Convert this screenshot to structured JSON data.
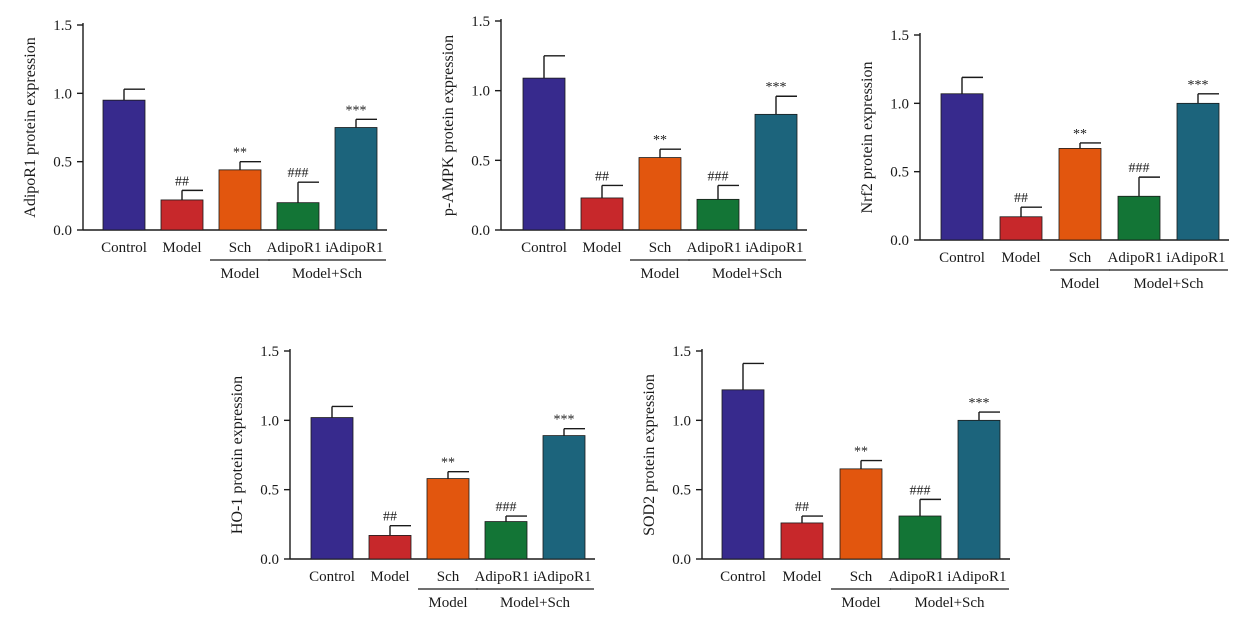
{
  "chart_data": [
    {
      "type": "bar",
      "ylabel": "AdipoR1 protein expression",
      "ylim": [
        0,
        1.5
      ],
      "yticks": [
        "0.0",
        "0.5",
        "1.0",
        "1.5"
      ],
      "categories": [
        "Control",
        "Model",
        "Sch",
        "AdipoR1 i",
        "AdipoR1"
      ],
      "values": [
        0.95,
        0.22,
        0.44,
        0.2,
        0.75
      ],
      "errors": [
        0.08,
        0.07,
        0.06,
        0.15,
        0.06
      ],
      "significance": [
        "",
        "##",
        "**",
        "###",
        "***"
      ],
      "group_labels": [
        {
          "text": "Model",
          "from": 2,
          "to": 2
        },
        {
          "text": "Model+Sch",
          "from": 3,
          "to": 4
        }
      ]
    },
    {
      "type": "bar",
      "ylabel": "p-AMPK protein expression",
      "ylim": [
        0,
        1.5
      ],
      "yticks": [
        "0.0",
        "0.5",
        "1.0",
        "1.5"
      ],
      "categories": [
        "Control",
        "Model",
        "Sch",
        "AdipoR1 i",
        "AdipoR1"
      ],
      "values": [
        1.09,
        0.23,
        0.52,
        0.22,
        0.83
      ],
      "errors": [
        0.16,
        0.09,
        0.06,
        0.1,
        0.13
      ],
      "significance": [
        "",
        "##",
        "**",
        "###",
        "***"
      ],
      "group_labels": [
        {
          "text": "Model",
          "from": 2,
          "to": 2
        },
        {
          "text": "Model+Sch",
          "from": 3,
          "to": 4
        }
      ]
    },
    {
      "type": "bar",
      "ylabel": "Nrf2 protein expression",
      "ylim": [
        0,
        1.5
      ],
      "yticks": [
        "0.0",
        "0.5",
        "1.0",
        "1.5"
      ],
      "categories": [
        "Control",
        "Model",
        "Sch",
        "AdipoR1 i",
        "AdipoR1"
      ],
      "values": [
        1.07,
        0.17,
        0.67,
        0.32,
        1.0
      ],
      "errors": [
        0.12,
        0.07,
        0.04,
        0.14,
        0.07
      ],
      "significance": [
        "",
        "##",
        "**",
        "###",
        "***"
      ],
      "group_labels": [
        {
          "text": "Model",
          "from": 2,
          "to": 2
        },
        {
          "text": "Model+Sch",
          "from": 3,
          "to": 4
        }
      ]
    },
    {
      "type": "bar",
      "ylabel": "HO-1 protein expression",
      "ylim": [
        0,
        1.5
      ],
      "yticks": [
        "0.0",
        "0.5",
        "1.0",
        "1.5"
      ],
      "categories": [
        "Control",
        "Model",
        "Sch",
        "AdipoR1 i",
        "AdipoR1"
      ],
      "values": [
        1.02,
        0.17,
        0.58,
        0.27,
        0.89
      ],
      "errors": [
        0.08,
        0.07,
        0.05,
        0.04,
        0.05
      ],
      "significance": [
        "",
        "##",
        "**",
        "###",
        "***"
      ],
      "group_labels": [
        {
          "text": "Model",
          "from": 2,
          "to": 2
        },
        {
          "text": "Model+Sch",
          "from": 3,
          "to": 4
        }
      ]
    },
    {
      "type": "bar",
      "ylabel": "SOD2 protein expression",
      "ylim": [
        0,
        1.5
      ],
      "yticks": [
        "0.0",
        "0.5",
        "1.0",
        "1.5"
      ],
      "categories": [
        "Control",
        "Model",
        "Sch",
        "AdipoR1 i",
        "AdipoR1"
      ],
      "values": [
        1.22,
        0.26,
        0.65,
        0.31,
        1.0
      ],
      "errors": [
        0.19,
        0.05,
        0.06,
        0.12,
        0.06
      ],
      "significance": [
        "",
        "##",
        "**",
        "###",
        "***"
      ],
      "group_labels": [
        {
          "text": "Model",
          "from": 2,
          "to": 2
        },
        {
          "text": "Model+Sch",
          "from": 3,
          "to": 4
        }
      ]
    }
  ],
  "colors": {
    "bars": [
      "#372a8d",
      "#c7282b",
      "#e2560e",
      "#137536",
      "#1c647c"
    ],
    "ink": "#1a1a1a"
  }
}
